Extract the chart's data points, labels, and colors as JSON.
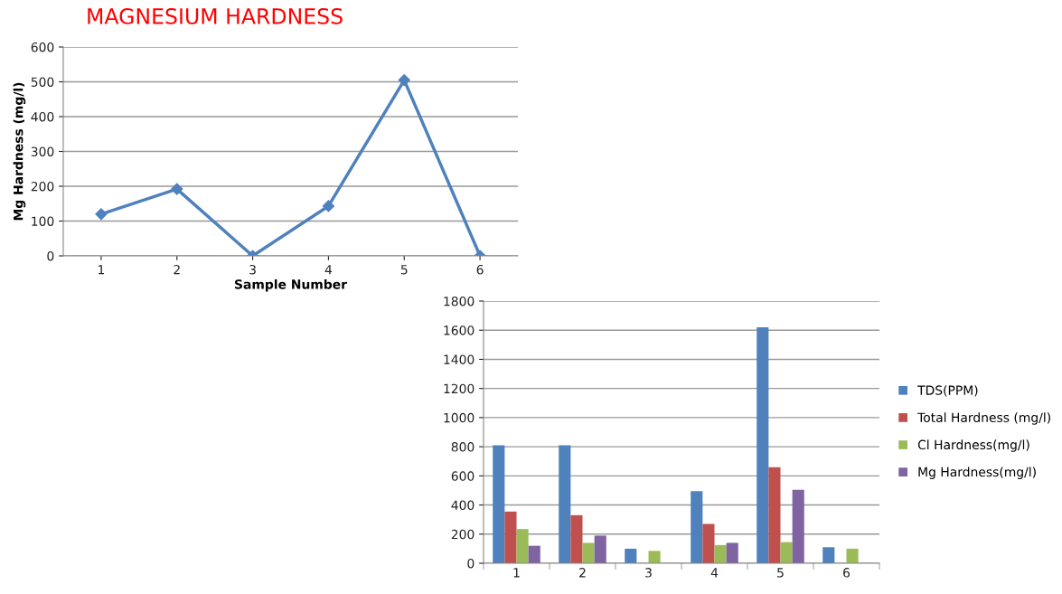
{
  "chart_data": [
    {
      "type": "line",
      "title": "MAGNESIUM HARDNESS",
      "xlabel": "Sample Number",
      "ylabel": "Mg Hardness (mg/l)",
      "categories": [
        "1",
        "2",
        "3",
        "4",
        "5",
        "6"
      ],
      "series": [
        {
          "color": "#4f81bd",
          "values": [
            120,
            192,
            0,
            143,
            505,
            0
          ]
        }
      ],
      "ylim": [
        0,
        600
      ],
      "yticks": [
        0,
        100,
        200,
        300,
        400,
        500,
        600
      ],
      "grid": "y",
      "marker": "diamond",
      "line_style": "solid",
      "legend": false
    },
    {
      "type": "bar",
      "categories": [
        "1",
        "2",
        "3",
        "4",
        "5",
        "6"
      ],
      "series": [
        {
          "name": "TDS(PPM)",
          "color": "#4f81bd",
          "values": [
            810,
            810,
            100,
            495,
            1620,
            110
          ]
        },
        {
          "name": "Total Hardness (mg/l)",
          "color": "#c0504d",
          "values": [
            355,
            330,
            0,
            270,
            660,
            0
          ]
        },
        {
          "name": "Cl Hardness(mg/l)",
          "color": "#9bbb59",
          "values": [
            235,
            140,
            85,
            125,
            145,
            100
          ]
        },
        {
          "name": "Mg Hardness(mg/l)",
          "color": "#8064a2",
          "values": [
            120,
            190,
            0,
            140,
            505,
            0
          ]
        }
      ],
      "ylim": [
        0,
        1800
      ],
      "yticks": [
        0,
        200,
        400,
        600,
        800,
        1000,
        1200,
        1400,
        1600,
        1800
      ],
      "grid": "y",
      "legend": "right"
    }
  ]
}
